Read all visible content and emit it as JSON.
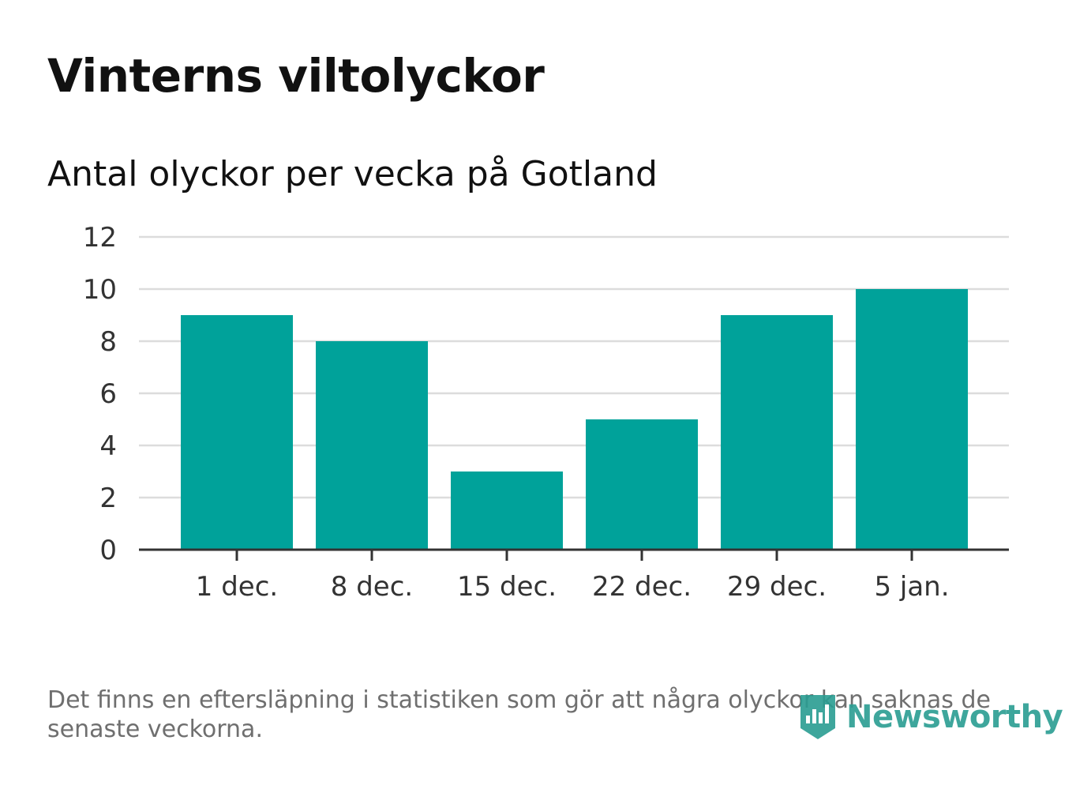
{
  "header": {
    "title": "Vinterns viltolyckor",
    "subtitle": "Antal olyckor per vecka på Gotland"
  },
  "chart_data": {
    "type": "bar",
    "categories": [
      "1 dec.",
      "8 dec.",
      "15 dec.",
      "22 dec.",
      "29 dec.",
      "5 jan."
    ],
    "values": [
      9,
      8,
      3,
      5,
      9,
      10
    ],
    "ylim": [
      0,
      12
    ],
    "yticks": [
      0,
      2,
      4,
      6,
      8,
      10,
      12
    ],
    "grid": true,
    "bar_color": "#00a29a"
  },
  "footer": {
    "note": "Det finns en eftersläpning i statistiken som gör att några olyckor kan saknas de senaste veckorna.",
    "brand": "Newsworthy",
    "brand_color": "#2a9d92",
    "brand_icon": "bar-chart-badge-icon"
  }
}
